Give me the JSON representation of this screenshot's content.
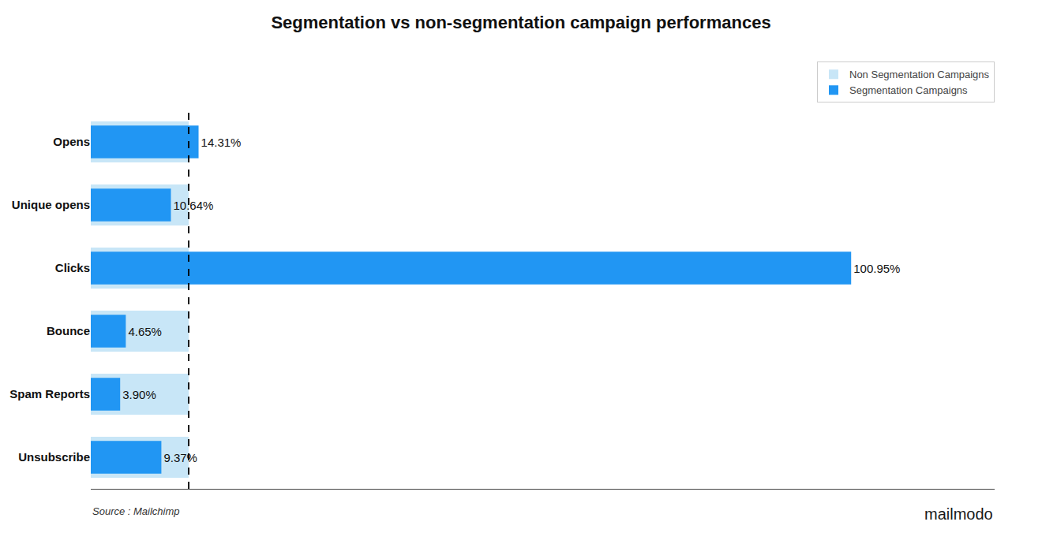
{
  "chart_data": {
    "type": "bar",
    "orientation": "horizontal",
    "title": "Segmentation vs non-segmentation campaign performances",
    "categories": [
      "Opens",
      "Unique opens",
      "Clicks",
      "Bounce",
      "Spam Reports",
      "Unsubscribe"
    ],
    "series": [
      {
        "name": "Non Segmentation Campaigns",
        "color": "#C8E6F7",
        "values": [
          13.0,
          13.0,
          13.0,
          13.0,
          13.0,
          13.0
        ]
      },
      {
        "name": "Segmentation Campaigns",
        "color": "#2196F3",
        "values": [
          14.31,
          10.64,
          100.95,
          4.65,
          3.9,
          9.37
        ],
        "value_labels": [
          "14.31%",
          "10.64%",
          "100.95%",
          "4.65%",
          "3.90%",
          "9.37%"
        ]
      }
    ],
    "xlim": [
      0,
      120
    ],
    "reference_line": {
      "x": 13.0,
      "line_style": "dashed"
    },
    "data_labels": true,
    "tick_labels": "y",
    "grid": false,
    "legend": "upper right",
    "annotations": [
      "Source : Mailchimp",
      "mailmodo"
    ]
  }
}
